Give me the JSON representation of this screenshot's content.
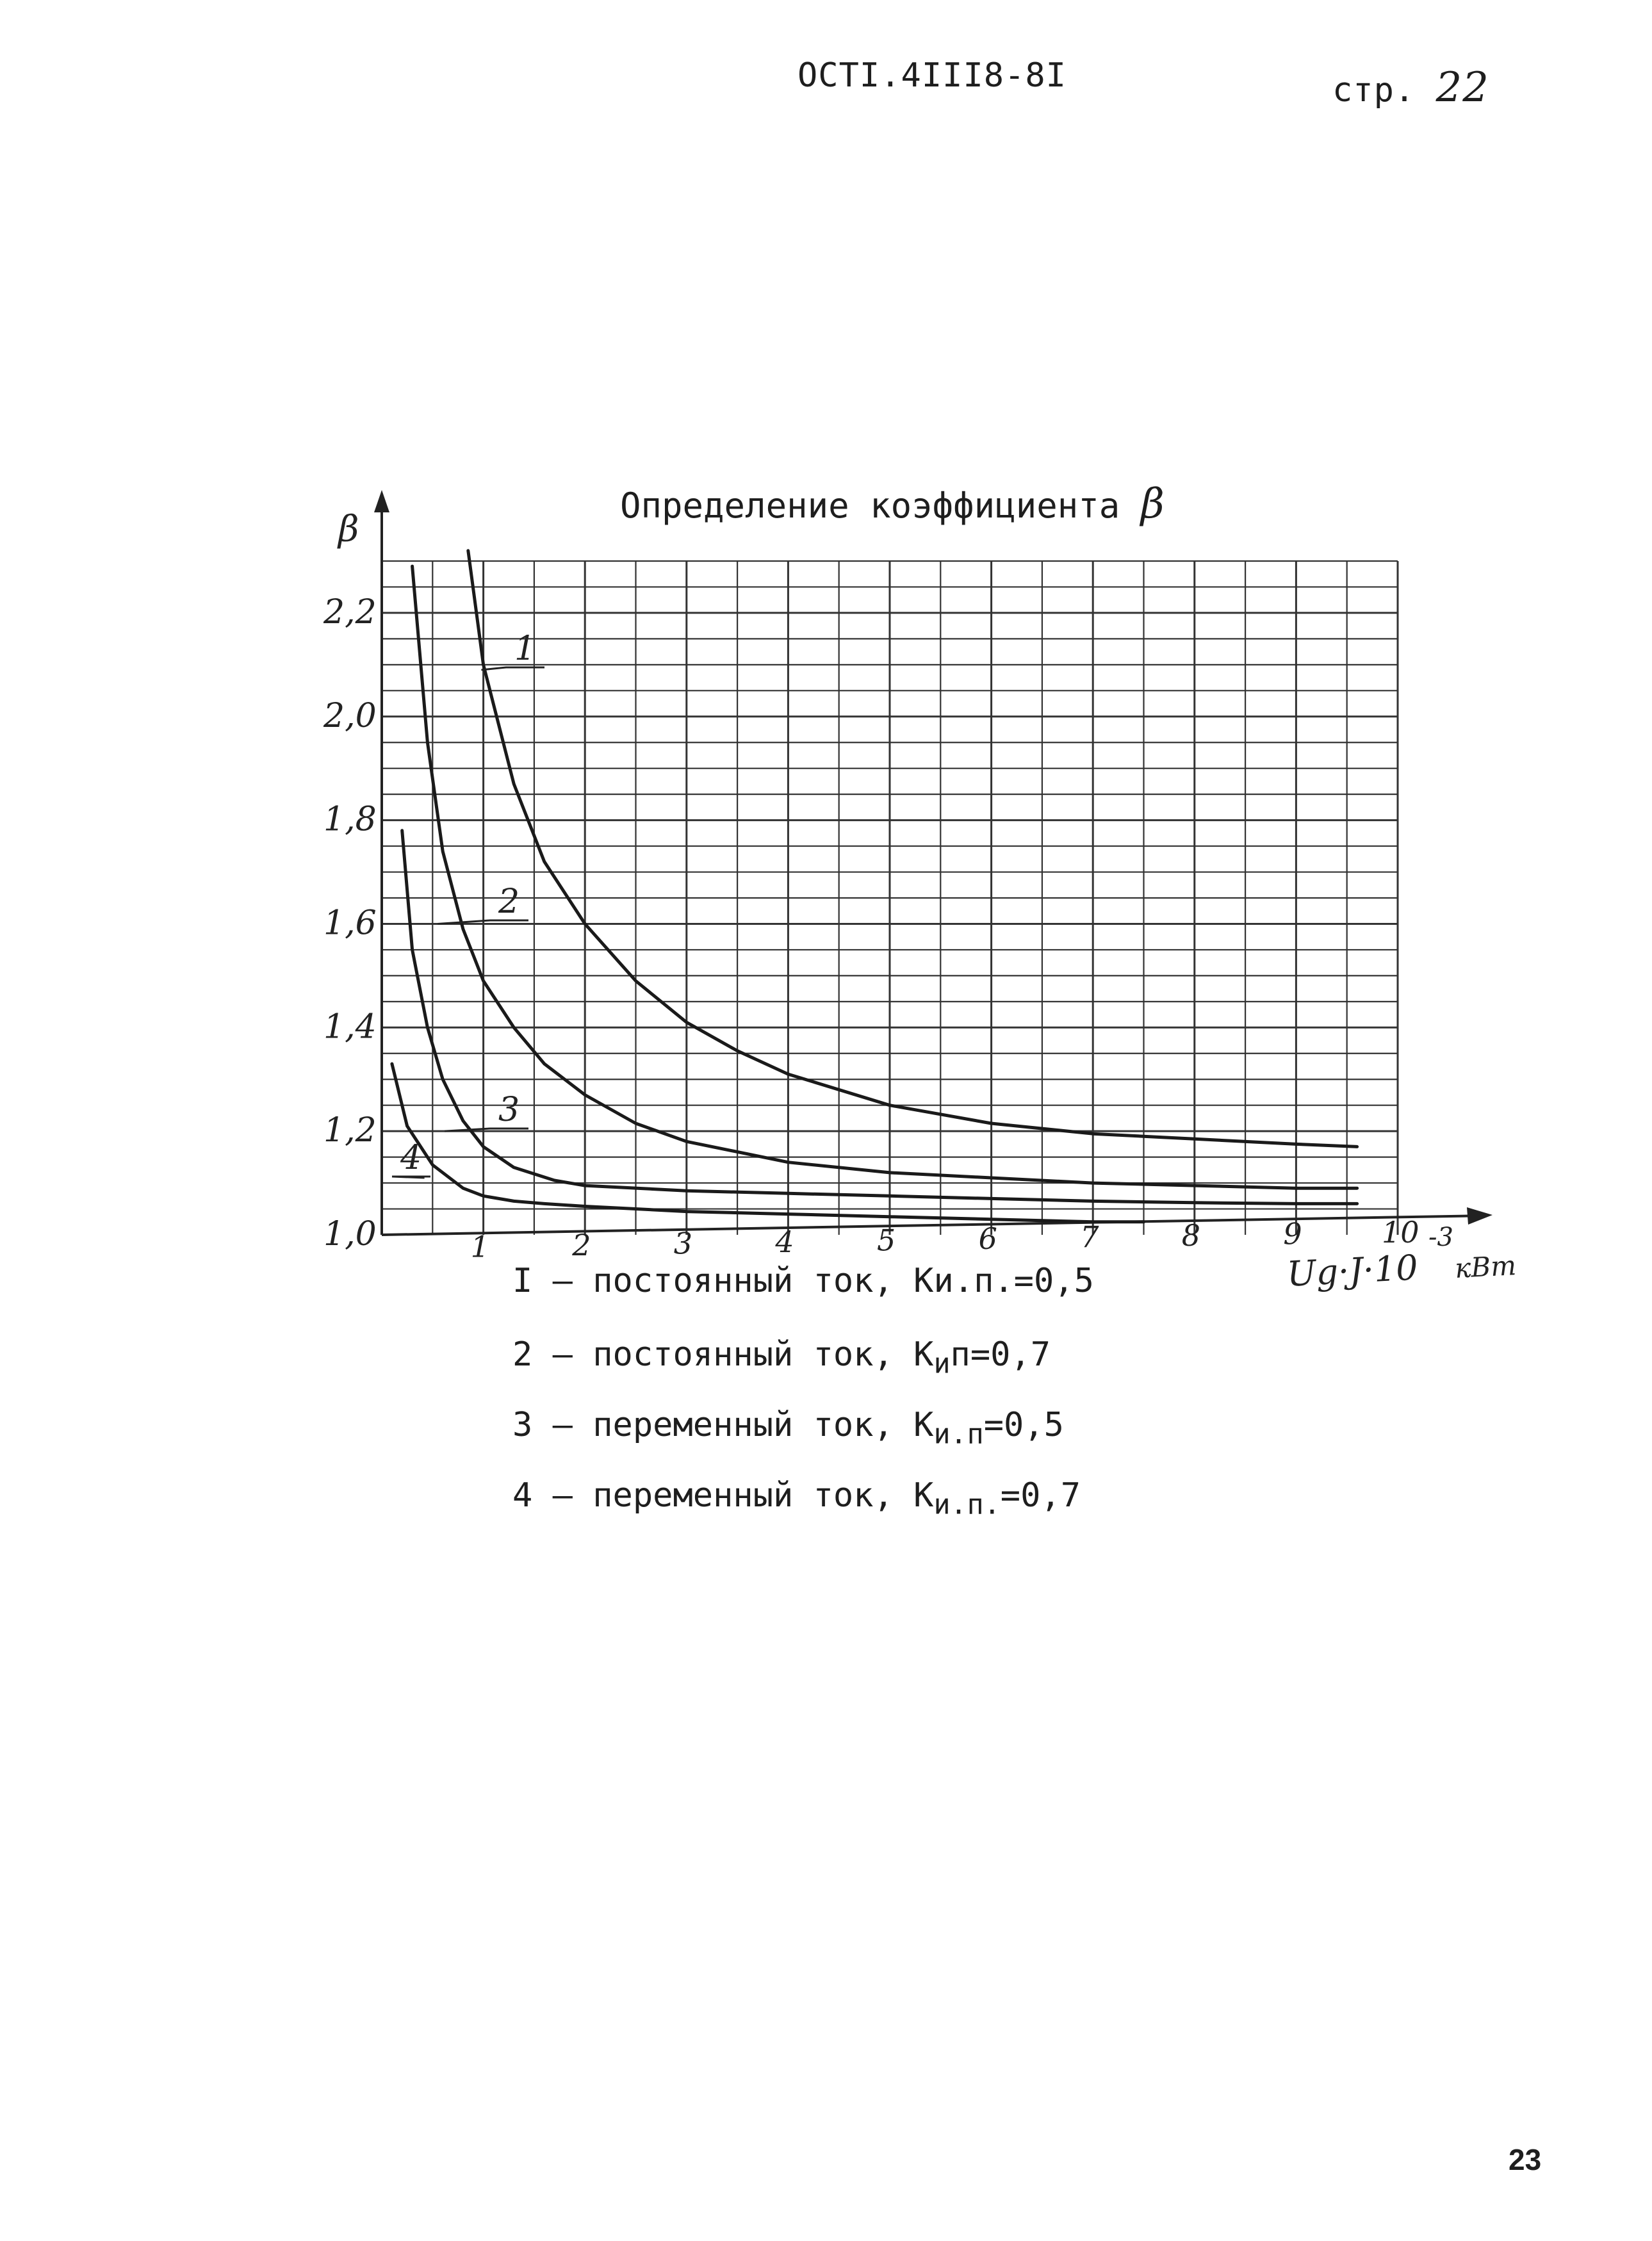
{
  "header": {
    "doc_code": "ОСТI.4III8-8I",
    "page_label": "стр.",
    "page_number": "22"
  },
  "footer": {
    "page_number": "23"
  },
  "chart_data": {
    "type": "line",
    "title": "Определение коэффициента",
    "title_symbol": "β",
    "ylabel": "β",
    "xlabel": "Ug·J·10",
    "xlabel_exp": "-3",
    "xlabel_unit": "кВт",
    "xlim": [
      0,
      10
    ],
    "ylim": [
      1.0,
      2.3
    ],
    "grid": true,
    "x_ticks": [
      "1",
      "2",
      "3",
      "4",
      "5",
      "6",
      "7",
      "8",
      "9",
      "10"
    ],
    "y_ticks": [
      "1,0",
      "1,2",
      "1,4",
      "1,6",
      "1,8",
      "2,0",
      "2,2"
    ],
    "series": [
      {
        "name": "1",
        "x": [
          0.85,
          1.0,
          1.3,
          1.6,
          2.0,
          2.5,
          3.0,
          3.5,
          4.0,
          5.0,
          6.0,
          7.0,
          8.0,
          9.0,
          9.6
        ],
        "y": [
          2.32,
          2.1,
          1.87,
          1.72,
          1.6,
          1.49,
          1.41,
          1.355,
          1.31,
          1.25,
          1.215,
          1.195,
          1.185,
          1.175,
          1.17
        ]
      },
      {
        "name": "2",
        "x": [
          0.3,
          0.45,
          0.6,
          0.8,
          1.0,
          1.3,
          1.6,
          2.0,
          2.5,
          3.0,
          4.0,
          5.0,
          6.0,
          7.0,
          8.0,
          9.0,
          9.6
        ],
        "y": [
          2.29,
          1.95,
          1.74,
          1.59,
          1.49,
          1.4,
          1.33,
          1.27,
          1.215,
          1.18,
          1.14,
          1.12,
          1.11,
          1.1,
          1.095,
          1.09,
          1.09
        ]
      },
      {
        "name": "3",
        "x": [
          0.2,
          0.3,
          0.45,
          0.6,
          0.8,
          1.0,
          1.3,
          1.7,
          2.0,
          3.0,
          4.0,
          5.0,
          6.0,
          7.0,
          8.0,
          9.0,
          9.6
        ],
        "y": [
          1.78,
          1.55,
          1.4,
          1.3,
          1.22,
          1.17,
          1.13,
          1.105,
          1.095,
          1.085,
          1.08,
          1.075,
          1.07,
          1.065,
          1.062,
          1.06,
          1.06
        ]
      },
      {
        "name": "4",
        "x": [
          0.1,
          0.25,
          0.5,
          0.8,
          1.0,
          1.3,
          1.6,
          2.0,
          3.0,
          4.0,
          5.0,
          6.0,
          7.0,
          7.5
        ],
        "y": [
          1.33,
          1.21,
          1.135,
          1.09,
          1.075,
          1.065,
          1.06,
          1.055,
          1.045,
          1.04,
          1.035,
          1.03,
          1.025,
          1.025
        ]
      }
    ]
  },
  "legend": {
    "item1": {
      "num": "I",
      "text": "– постоянный ток, Ки.п.=0,5"
    },
    "item2": {
      "num": "2",
      "text": "– постоянный ток, К",
      "sub": "и",
      "rest": "п=0,7"
    },
    "item3": {
      "num": "3",
      "text": "– переменный ток, К",
      "sub": "и.п",
      "rest": "=0,5"
    },
    "item4": {
      "num": "4",
      "text": "– переменный ток, К",
      "sub": "и.п.",
      "rest": "=0,7"
    }
  }
}
